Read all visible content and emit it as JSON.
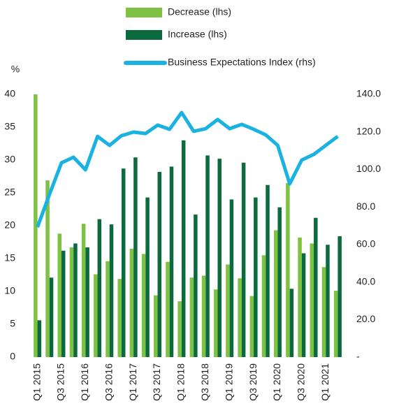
{
  "chart_data": {
    "type": "bar_line",
    "ylabel": "%",
    "categories": [
      "Q1 2015",
      null,
      "Q3 2015",
      null,
      "Q1 2016",
      null,
      "Q3 2016",
      null,
      "Q1 2017",
      null,
      "Q3 2017",
      null,
      "Q1 2018",
      null,
      "Q3 2018",
      null,
      "Q1 2019",
      null,
      "Q3 2019",
      null,
      "Q1 2020",
      null,
      "Q3 2020",
      null,
      "Q1 2021",
      null
    ],
    "series": [
      {
        "name": "Decrease (lhs)",
        "type": "bar",
        "axis": "y",
        "color": "#7dc242",
        "values": [
          40,
          26.9,
          18.8,
          16.7,
          20.3,
          12.6,
          14.6,
          11.9,
          16.5,
          15.7,
          9.4,
          14.5,
          8.5,
          12.1,
          12.4,
          10.3,
          14.1,
          12.0,
          9.3,
          15.5,
          19.3,
          26.5,
          18.2,
          17.3,
          13.7,
          10.1
        ]
      },
      {
        "name": "Increase (lhs)",
        "type": "bar",
        "axis": "y",
        "color": "#0b6b3e",
        "values": [
          5.6,
          12.1,
          16.2,
          17.3,
          16.7,
          21.0,
          20.2,
          28.7,
          30.4,
          24.3,
          28.2,
          29.0,
          33.0,
          21.7,
          30.7,
          30.2,
          24.0,
          29.6,
          24.3,
          26.2,
          22.8,
          10.4,
          15.8,
          21.2,
          17.1,
          18.4
        ]
      },
      {
        "name": "Business Expectations Index (rhs)",
        "type": "line",
        "axis": "y2",
        "color": "#1ab2e0",
        "values": [
          69.2,
          86.7,
          103.5,
          106.5,
          99.8,
          117.6,
          112.8,
          118.0,
          119.9,
          119.1,
          123.6,
          121.4,
          130.3,
          120.3,
          121.7,
          126.6,
          121.7,
          124.0,
          121.4,
          118.4,
          112.8,
          92.3,
          105.0,
          108.0,
          112.8,
          117.6
        ]
      }
    ],
    "ylim": [
      0,
      40
    ],
    "yticks": [
      0,
      5,
      10,
      15,
      20,
      25,
      30,
      35,
      40
    ],
    "y2lim": [
      0,
      140
    ],
    "y2ticks": [
      {
        "value": 0,
        "label": "-"
      },
      {
        "value": 20,
        "label": "20.0"
      },
      {
        "value": 40,
        "label": "40.0"
      },
      {
        "value": 60,
        "label": "60.0"
      },
      {
        "value": 80,
        "label": "80.0"
      },
      {
        "value": 100,
        "label": "100.0"
      },
      {
        "value": 120,
        "label": "120.0"
      },
      {
        "value": 140,
        "label": "140.0"
      }
    ],
    "legend": "top"
  }
}
